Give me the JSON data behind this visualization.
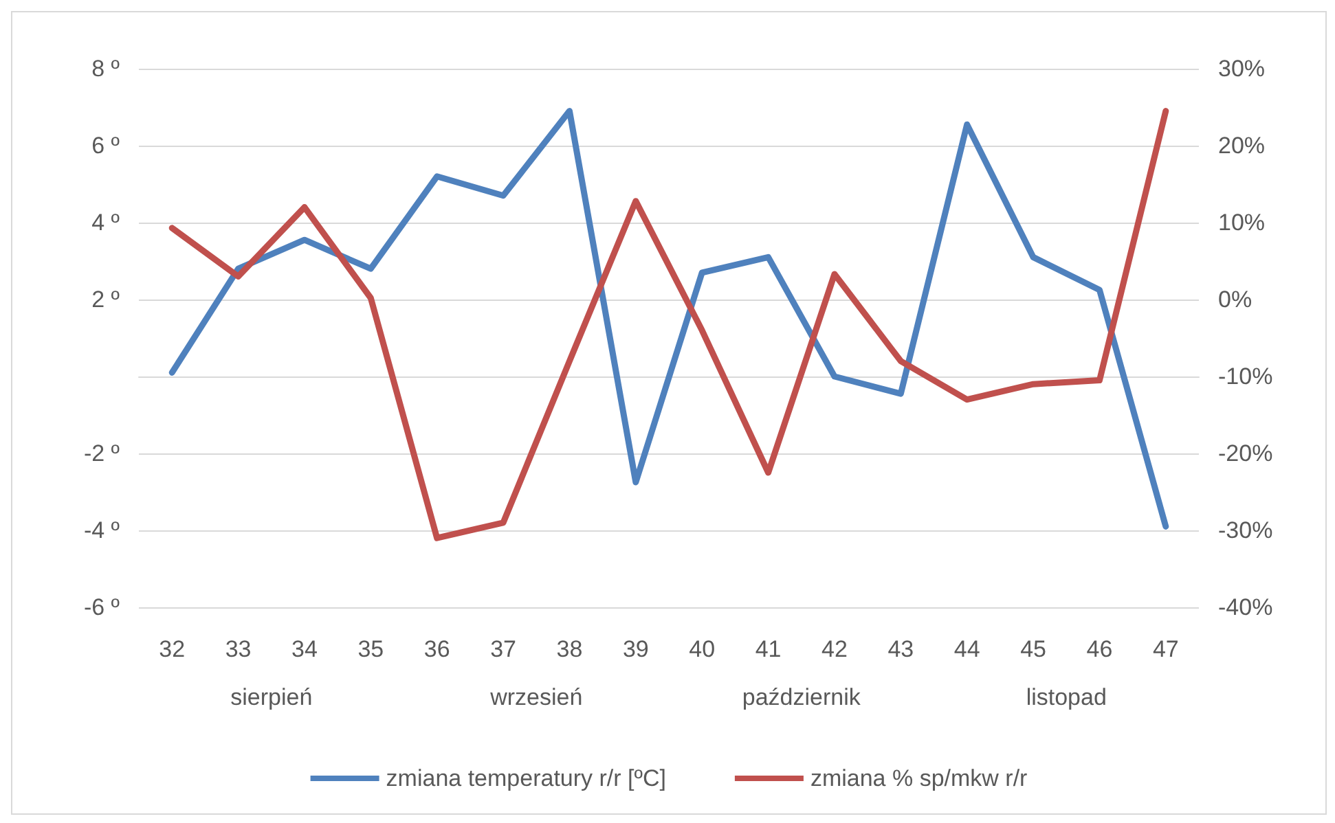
{
  "chart_data": {
    "type": "line",
    "categories": [
      "32",
      "33",
      "34",
      "35",
      "36",
      "37",
      "38",
      "39",
      "40",
      "41",
      "42",
      "43",
      "44",
      "45",
      "46",
      "47"
    ],
    "series": [
      {
        "name": "zmiana temperatury r/r [ºC]",
        "color": "#4f81bd",
        "values": [
          0.1,
          2.8,
          3.55,
          2.8,
          5.2,
          4.7,
          6.9,
          -2.75,
          2.7,
          3.1,
          0,
          -0.45,
          6.55,
          3.1,
          2.25,
          -3.9
        ]
      },
      {
        "name": "zmiana % sp/mkw r/r",
        "color": "#c0504d",
        "axis": "y2",
        "values": [
          9.3,
          3,
          12,
          0.2,
          -31,
          -29,
          -8,
          12.8,
          -4,
          -22.5,
          3.3,
          -8,
          -13,
          -11,
          -10.5,
          24.5
        ]
      }
    ],
    "ylim": [
      -6,
      8
    ],
    "yticks": [
      {
        "value": -6,
        "label": "-6 º"
      },
      {
        "value": -4,
        "label": "-4 º"
      },
      {
        "value": -2,
        "label": "-2 º"
      },
      {
        "value": 0,
        "label": null
      },
      {
        "value": 2,
        "label": "2 º"
      },
      {
        "value": 4,
        "label": "4 º"
      },
      {
        "value": 6,
        "label": "6 º"
      },
      {
        "value": 8,
        "label": "8 º"
      }
    ],
    "y2lim": [
      -40,
      30
    ],
    "y2ticks": [
      {
        "value": -40,
        "label": "-40%"
      },
      {
        "value": -30,
        "label": "-30%"
      },
      {
        "value": -20,
        "label": "-20%"
      },
      {
        "value": -10,
        "label": "-10%"
      },
      {
        "value": 0,
        "label": "0%"
      },
      {
        "value": 10,
        "label": "10%"
      },
      {
        "value": 20,
        "label": "20%"
      },
      {
        "value": 30,
        "label": "30%"
      }
    ],
    "annotations": [
      "sierpień",
      "wrzesień",
      "październik",
      "listopad"
    ],
    "grid": "y",
    "legend": "bottom",
    "marker": "none",
    "line_style": "solid"
  }
}
